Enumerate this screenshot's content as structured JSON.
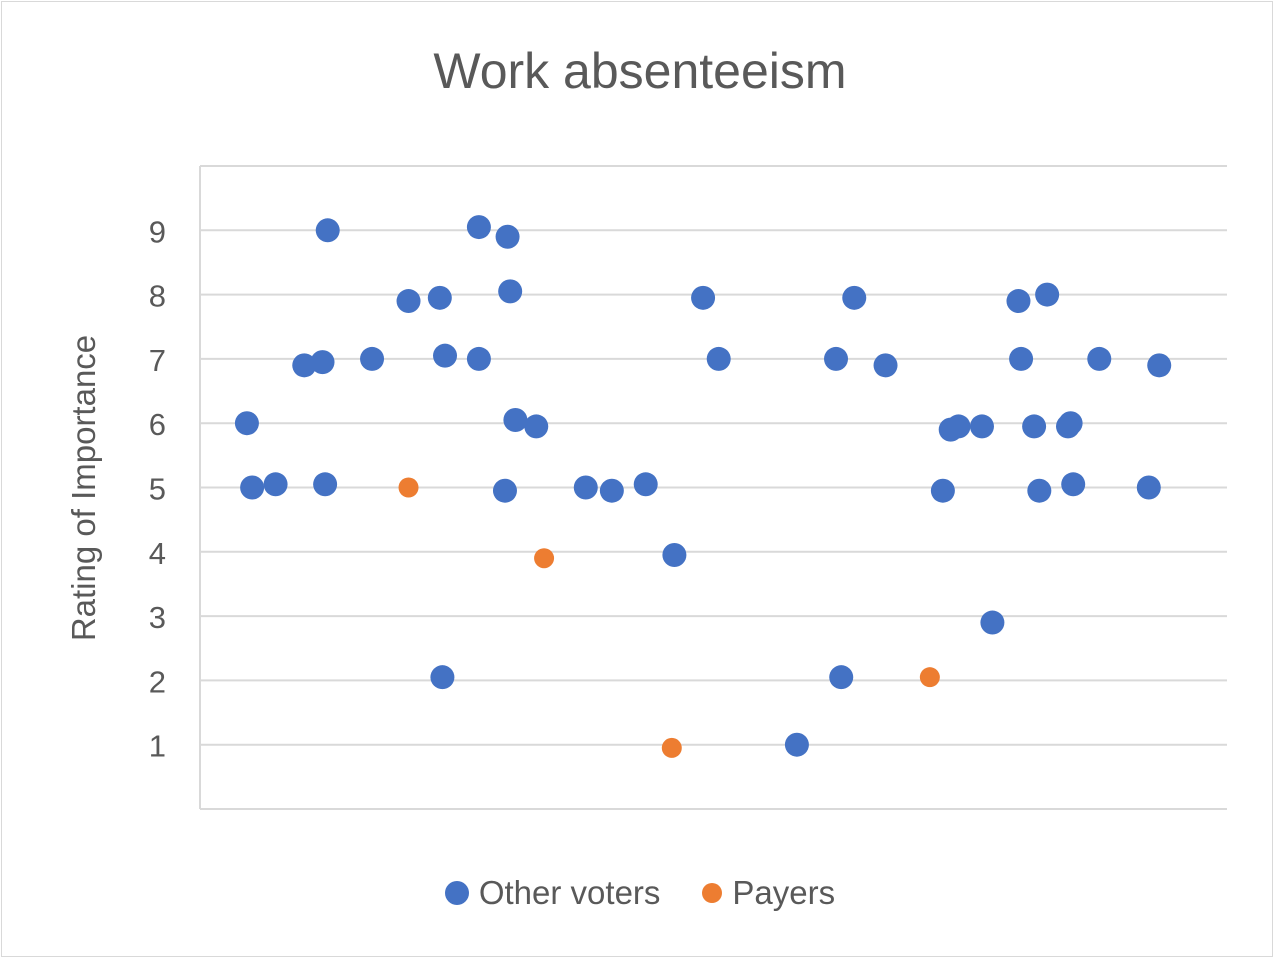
{
  "chart_data": {
    "type": "scatter",
    "title": "Work absenteeism",
    "xlabel": "",
    "ylabel": "Rating of Importance",
    "ylim": [
      0,
      10
    ],
    "yticks": [
      1,
      2,
      3,
      4,
      5,
      6,
      7,
      8,
      9
    ],
    "x_axis_labels_shown": false,
    "grid": "horizontal",
    "legend_position": "bottom",
    "series": [
      {
        "name": "Other voters",
        "color": "#4472c4",
        "points": [
          [
            1.8,
            6.0
          ],
          [
            2.0,
            5.0
          ],
          [
            2.9,
            5.05
          ],
          [
            4.0,
            6.9
          ],
          [
            4.7,
            6.95
          ],
          [
            4.8,
            5.05
          ],
          [
            4.9,
            9.0
          ],
          [
            6.6,
            7.0
          ],
          [
            8.0,
            7.9
          ],
          [
            9.2,
            7.95
          ],
          [
            9.3,
            2.05
          ],
          [
            9.4,
            7.05
          ],
          [
            10.7,
            9.05
          ],
          [
            10.7,
            7.0
          ],
          [
            11.7,
            4.95
          ],
          [
            11.8,
            8.9
          ],
          [
            11.9,
            8.05
          ],
          [
            12.1,
            6.05
          ],
          [
            12.9,
            5.95
          ],
          [
            14.8,
            5.0
          ],
          [
            15.8,
            4.95
          ],
          [
            17.1,
            5.05
          ],
          [
            18.2,
            3.95
          ],
          [
            19.3,
            7.95
          ],
          [
            19.9,
            7.0
          ],
          [
            22.9,
            1.0
          ],
          [
            24.4,
            7.0
          ],
          [
            24.6,
            2.05
          ],
          [
            25.1,
            7.95
          ],
          [
            26.3,
            6.9
          ],
          [
            28.5,
            4.95
          ],
          [
            28.8,
            5.9
          ],
          [
            29.1,
            5.95
          ],
          [
            30.0,
            5.95
          ],
          [
            30.4,
            2.9
          ],
          [
            31.4,
            7.9
          ],
          [
            31.5,
            7.0
          ],
          [
            32.0,
            5.95
          ],
          [
            32.2,
            4.95
          ],
          [
            32.5,
            8.0
          ],
          [
            33.3,
            5.95
          ],
          [
            33.4,
            6.0
          ],
          [
            33.5,
            5.05
          ],
          [
            34.5,
            7.0
          ],
          [
            36.4,
            5.0
          ],
          [
            36.8,
            6.9
          ]
        ]
      },
      {
        "name": "Payers",
        "color": "#ed7d31",
        "points": [
          [
            8.0,
            5.0
          ],
          [
            13.2,
            3.9
          ],
          [
            18.1,
            0.95
          ],
          [
            28.0,
            2.05
          ]
        ]
      }
    ]
  }
}
